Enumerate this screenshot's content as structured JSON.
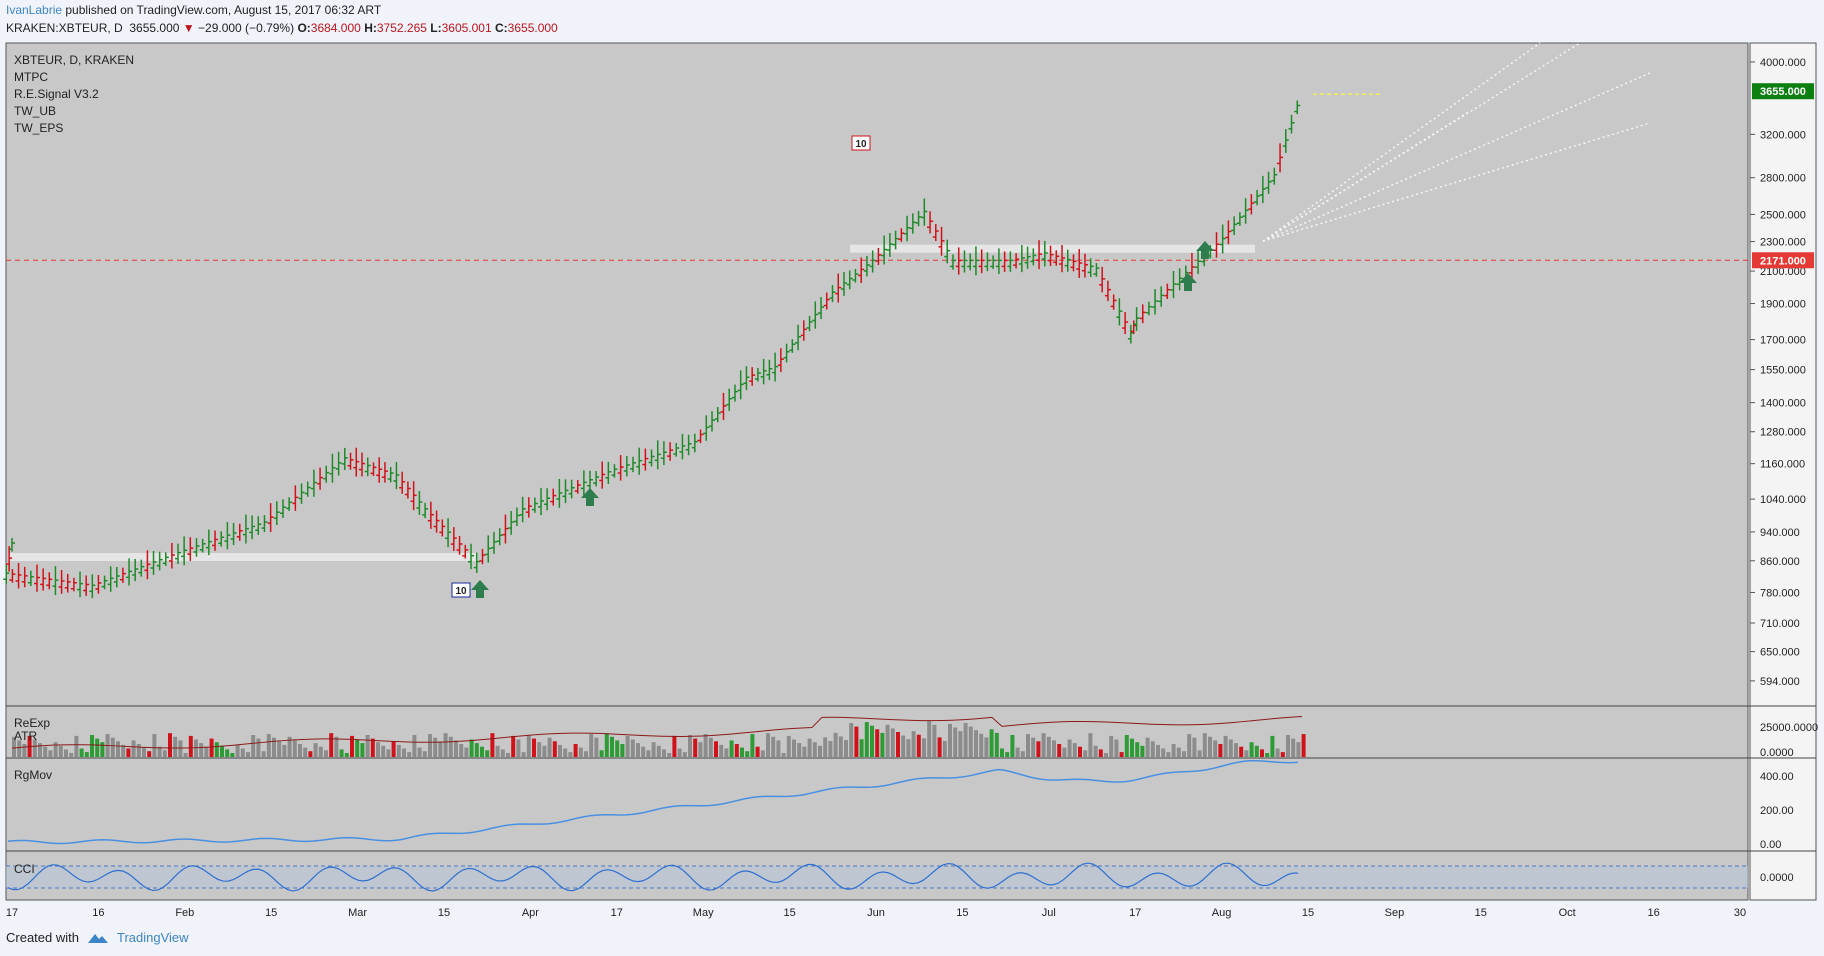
{
  "header": {
    "author": "IvanLabrie",
    "published": " published on TradingView.com, August 15, 2017 06:32 ART",
    "symbol": "KRAKEN:XBTEUR, D",
    "last": "3655.000",
    "change": "−29.000 (−0.79%)",
    "o_label": "O:",
    "o": "3684.000",
    "h_label": "H:",
    "h": "3752.265",
    "l_label": "L:",
    "l": "3605.001",
    "c_label": "C:",
    "c": "3655.000"
  },
  "legend": [
    "XBTEUR, D, KRAKEN",
    "MTPC",
    "R.E.Signal V3.2",
    "TW_UB",
    "TW_EPS"
  ],
  "panes": {
    "volume": [
      "ReExp",
      "ATR"
    ],
    "rgmov": "RgMov",
    "cci": "CCI"
  },
  "badges": [
    "10",
    "10"
  ],
  "price_tags": {
    "last": "3655.000",
    "level": "2171.000"
  },
  "footer": {
    "created": "Created with",
    "brand": "TradingView"
  },
  "colors": {
    "up": "#1e8a2a",
    "down": "#d0121b",
    "bg": "#c8c8c8",
    "rgmov": "#4a90e2",
    "accent": "#3d85c6",
    "level": "#e53935",
    "last_tag": "#0b7f10"
  },
  "chart_data": {
    "type": "line",
    "title": "XBTEUR, D, KRAKEN",
    "y_scale": "log",
    "ylim": [
      560,
      4150
    ],
    "y_ticks": [
      "4000.000",
      "3200.000",
      "2800.000",
      "2500.000",
      "2300.000",
      "2100.000",
      "1900.000",
      "1700.000",
      "1550.000",
      "1400.000",
      "1280.000",
      "1160.000",
      "1040.000",
      "940.000",
      "860.000",
      "780.000",
      "710.000",
      "650.000",
      "594.000"
    ],
    "x_ticks": [
      "17",
      "16",
      "Feb",
      "15",
      "Mar",
      "15",
      "Apr",
      "17",
      "May",
      "15",
      "Jun",
      "15",
      "Jul",
      "17",
      "Aug",
      "15",
      "Sep",
      "15",
      "Oct",
      "16",
      "30"
    ],
    "series": [
      {
        "name": "XBTEUR",
        "x": [
          "Dec 17",
          "Jan 1",
          "Jan 16",
          "Feb 1",
          "Feb 15",
          "Mar 1",
          "Mar 10",
          "Mar 15",
          "Mar 24",
          "Apr 1",
          "Apr 17",
          "May 1",
          "May 10",
          "May 15",
          "May 25",
          "Jun 1",
          "Jun 10",
          "Jun 15",
          "Jun 25",
          "Jul 1",
          "Jul 10",
          "Jul 16",
          "Jul 17",
          "Aug 1",
          "Aug 10",
          "Aug 15"
        ],
        "values": [
          900,
          820,
          790,
          880,
          960,
          1170,
          1110,
          1000,
          850,
          1000,
          1130,
          1230,
          1500,
          1550,
          1950,
          2150,
          2500,
          2150,
          2150,
          2200,
          2100,
          1720,
          1800,
          2300,
          2800,
          3655
        ]
      }
    ],
    "volume_axis": [
      "25000.0000",
      "0.0000"
    ],
    "rgmov_axis": [
      "400.00",
      "200.00",
      "0.00"
    ],
    "cci_axis": [
      "0.0000"
    ]
  }
}
